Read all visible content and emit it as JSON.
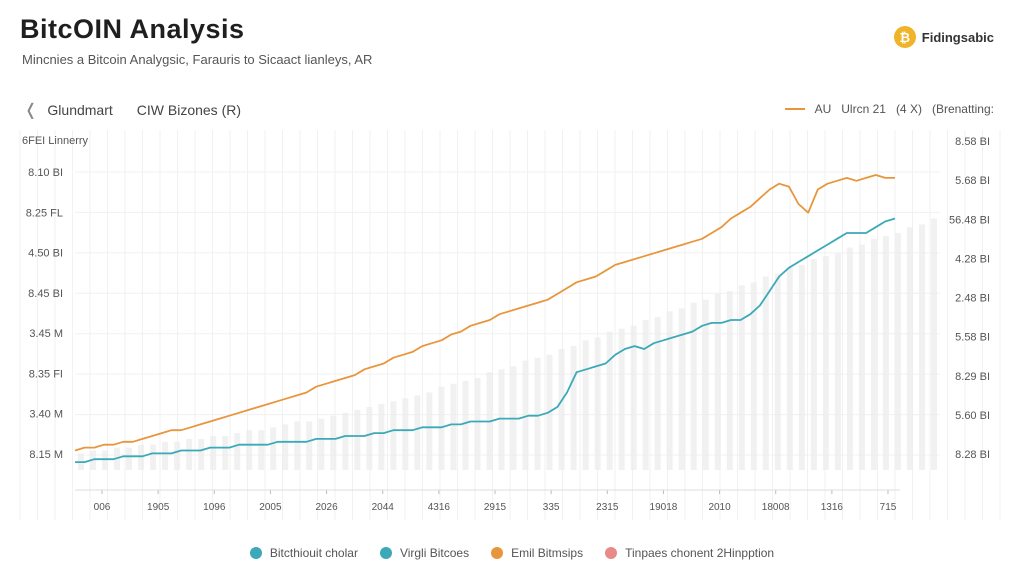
{
  "header": {
    "title": "BitcOIN Analysis",
    "subtitle": "Mincnies a Bitcoin Analygsic, Farauris to Sicaact lianleys, AR",
    "brand": {
      "icon": "bitcoin-logo-icon",
      "name": "Fidingsabic",
      "color": "#f0b429"
    }
  },
  "toolbar": {
    "back_icon": "chevron-left-icon",
    "items": [
      "Glundmart",
      "CIW Bizones  (R)"
    ]
  },
  "legend_top": {
    "line_label": "AU",
    "item2": "Ulrcn 21",
    "item3": "(4 X)",
    "item4": "(Brenatting:"
  },
  "colors": {
    "orange": "#e8963c",
    "teal": "#3ba9b8",
    "bars": "#ececec",
    "grid": "#f1f1f1"
  },
  "chart_data": {
    "type": "line",
    "axis_title_left": "6FEI Linnerry",
    "left_ticks": [
      "8.10 BI",
      "8.25 FL",
      "4.50 BI",
      "8.45 BI",
      "3.45 M",
      "8.35 FI",
      "3.40 M",
      "8.15 M"
    ],
    "right_ticks": [
      "8.58 BI",
      "5.68 BI",
      "56.48 BI",
      "4.28 BI",
      "2.48 BI",
      "5.58 BI",
      "8.29 BI",
      "5.60 BI",
      "8.28 BI"
    ],
    "x_ticks": [
      "006",
      "1905",
      "1096",
      "2005",
      "2026",
      "2044",
      "4316",
      "2915",
      "335",
      "2315",
      "19018",
      "2010",
      "18008",
      "1316",
      "715"
    ],
    "ylim": [
      0,
      100
    ],
    "series": [
      {
        "name": "Emil Bitmsips",
        "color": "#e8963c",
        "values": [
          5,
          6,
          6,
          7,
          7,
          8,
          8,
          9,
          10,
          11,
          12,
          12,
          13,
          14,
          15,
          16,
          17,
          18,
          19,
          20,
          21,
          22,
          23,
          24,
          25,
          27,
          28,
          29,
          30,
          31,
          33,
          34,
          35,
          37,
          38,
          39,
          41,
          42,
          43,
          45,
          46,
          48,
          49,
          50,
          52,
          53,
          54,
          55,
          56,
          57,
          59,
          61,
          63,
          64,
          65,
          67,
          69,
          70,
          71,
          72,
          73,
          74,
          75,
          76,
          77,
          78,
          80,
          82,
          85,
          87,
          89,
          92,
          95,
          97,
          96,
          90,
          87,
          95,
          97,
          98,
          99,
          98,
          99,
          100,
          99,
          99
        ]
      },
      {
        "name": "Virgli Bitcoes",
        "color": "#3ba9b8",
        "values": [
          1,
          1,
          2,
          2,
          2,
          3,
          3,
          3,
          4,
          4,
          4,
          5,
          5,
          5,
          6,
          6,
          6,
          7,
          7,
          7,
          7,
          8,
          8,
          8,
          8,
          9,
          9,
          9,
          10,
          10,
          10,
          11,
          11,
          12,
          12,
          12,
          13,
          13,
          13,
          14,
          14,
          15,
          15,
          15,
          16,
          16,
          16,
          17,
          17,
          18,
          20,
          25,
          32,
          33,
          34,
          35,
          38,
          40,
          41,
          40,
          42,
          43,
          44,
          45,
          46,
          48,
          49,
          49,
          50,
          50,
          52,
          55,
          60,
          65,
          68,
          70,
          72,
          74,
          76,
          78,
          80,
          80,
          80,
          82,
          84,
          85
        ]
      },
      {
        "name": "Bitcthiouit cholar",
        "color": "#3ba9b8",
        "values": []
      },
      {
        "name": "Tinpaes chonent 2Hinpption",
        "color": "#e88a8a",
        "values": []
      }
    ],
    "bars": [
      4,
      5,
      5,
      6,
      6,
      7,
      7,
      8,
      8,
      9,
      9,
      10,
      10,
      11,
      12,
      12,
      13,
      14,
      15,
      15,
      16,
      17,
      18,
      19,
      20,
      21,
      22,
      23,
      24,
      25,
      27,
      28,
      29,
      30,
      32,
      33,
      34,
      36,
      37,
      38,
      40,
      41,
      43,
      44,
      46,
      47,
      48,
      50,
      51,
      53,
      54,
      56,
      57,
      59,
      60,
      62,
      63,
      65,
      66,
      68,
      69,
      71,
      72,
      73,
      75,
      76,
      78,
      79,
      80,
      82,
      83,
      85
    ],
    "grid": true,
    "legend_position": "bottom"
  }
}
